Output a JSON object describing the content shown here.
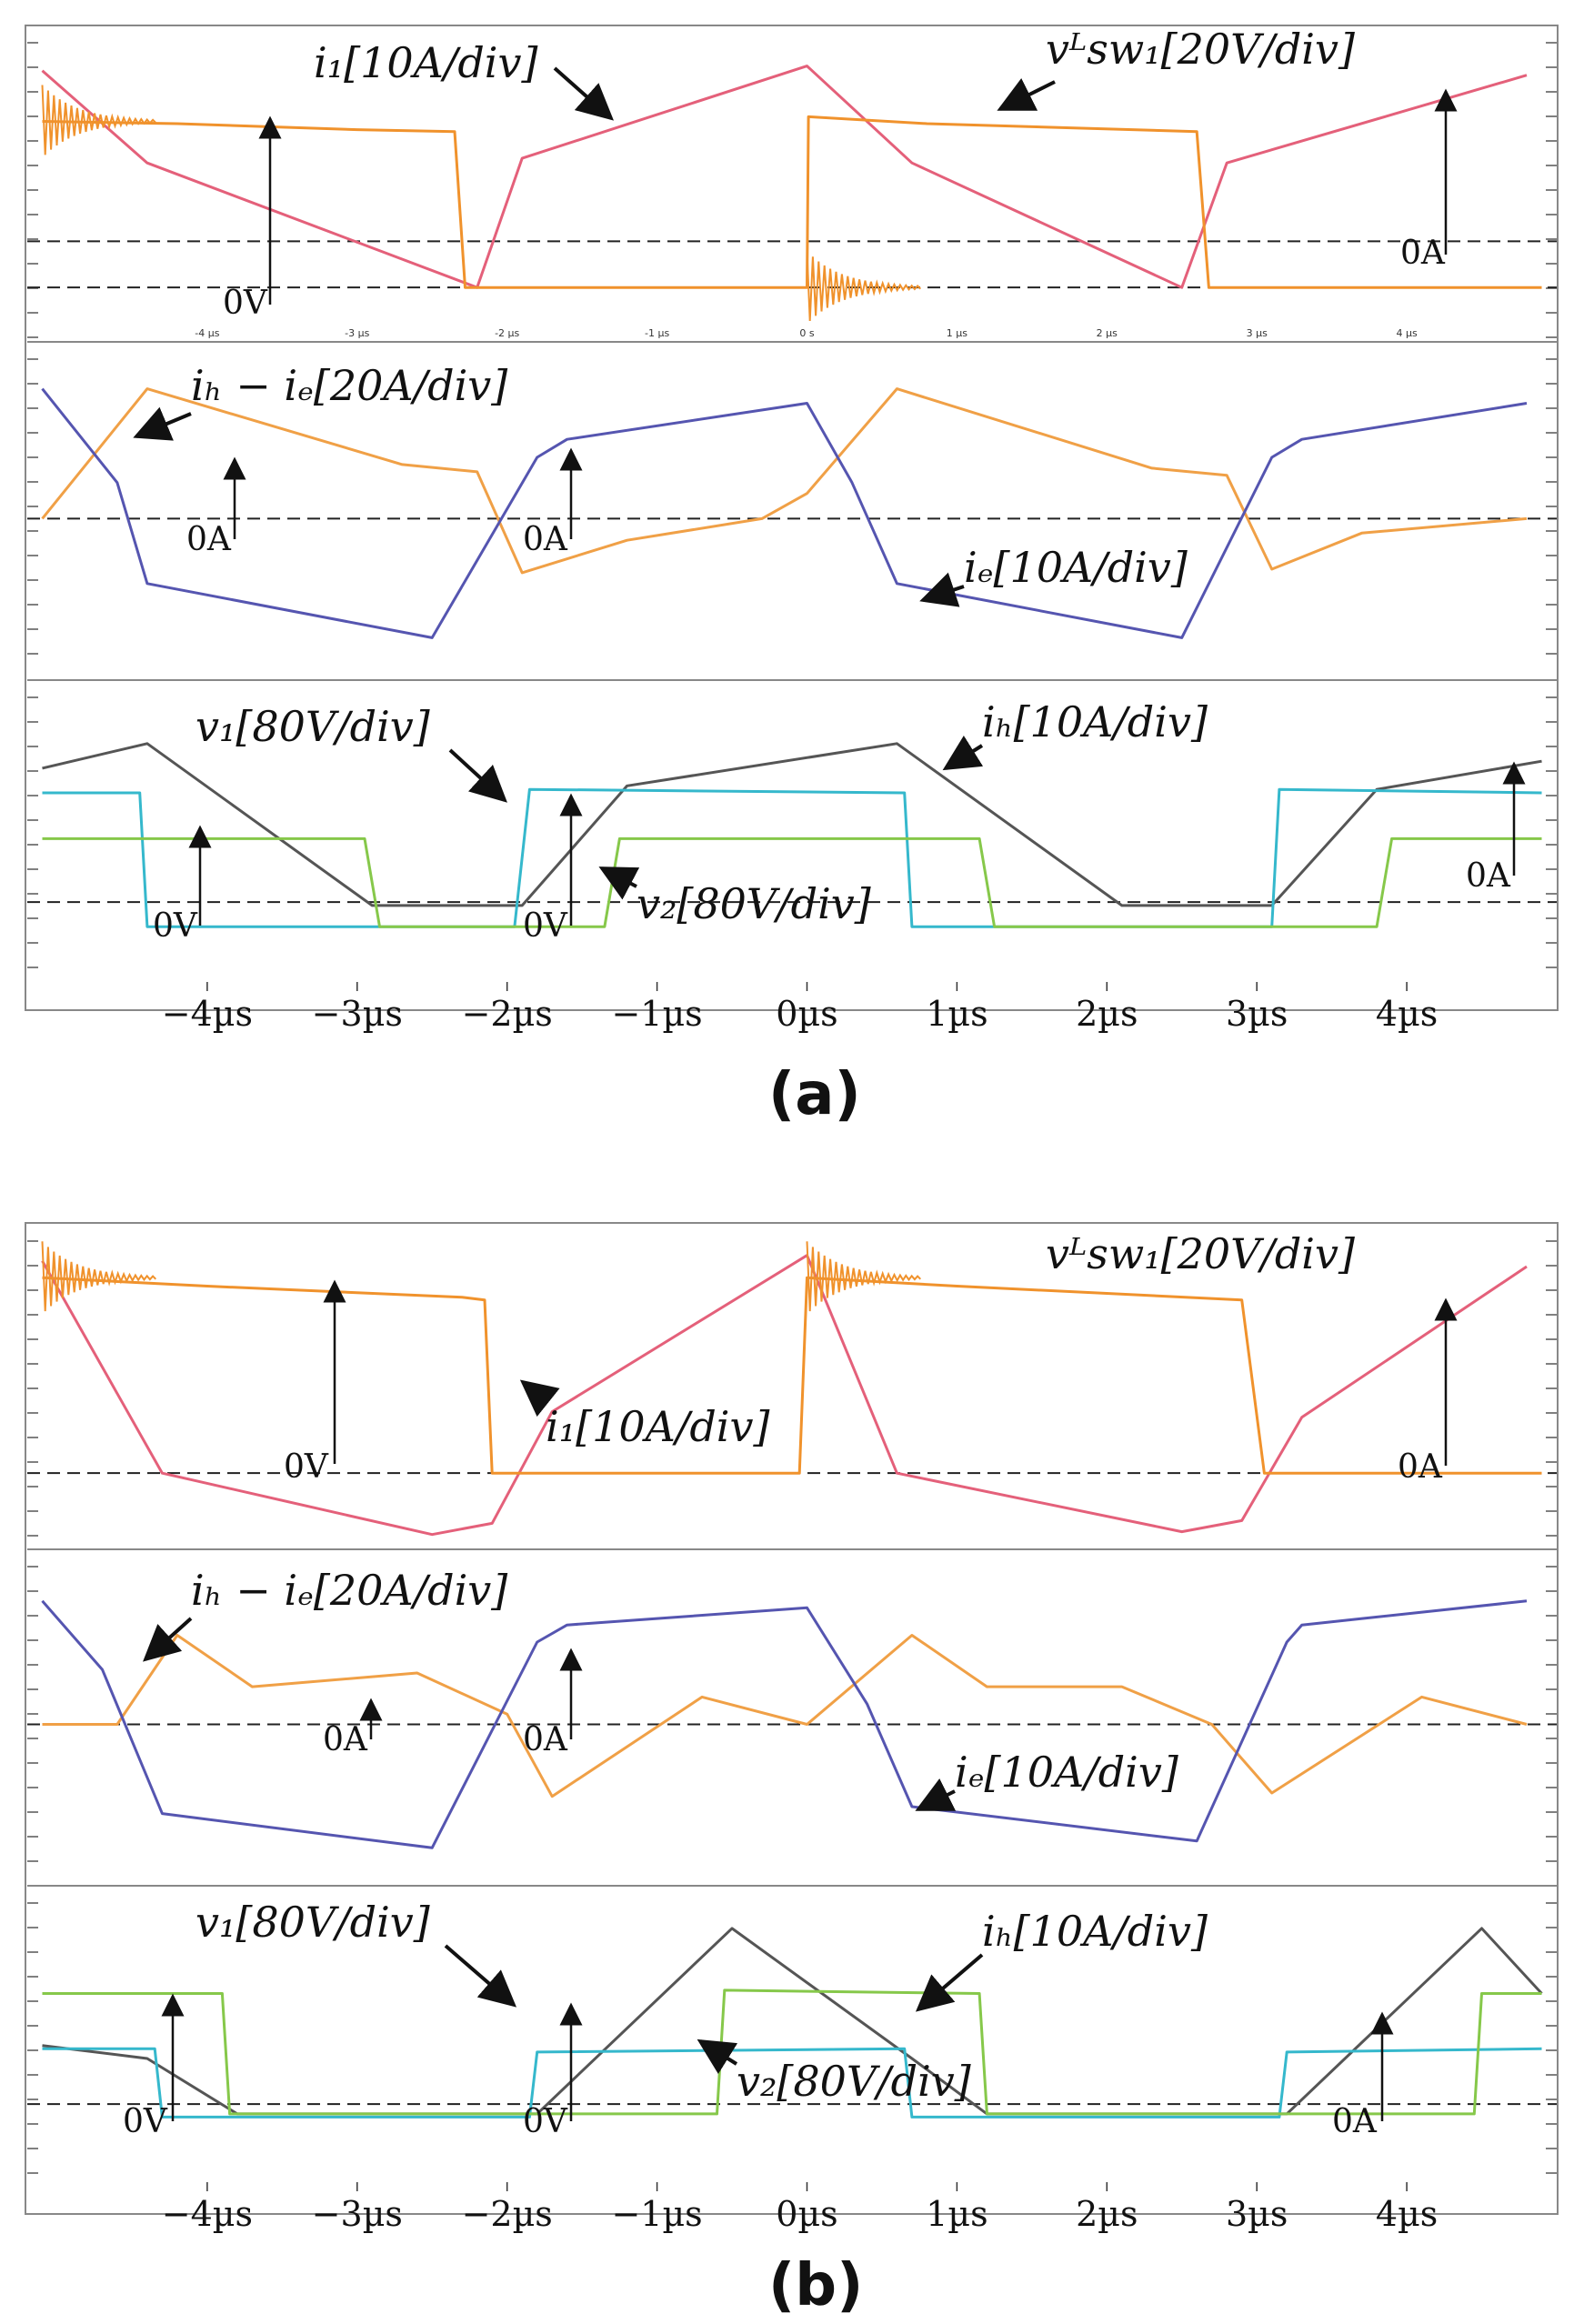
{
  "colors": {
    "i1": "#e4607a",
    "vsw": "#f0922c",
    "ihie": "#f0a046",
    "ie": "#5555b0",
    "v1": "#35b8cc",
    "v2": "#86c84a",
    "ih": "#555555",
    "grid": "#bbbbbb",
    "arrow": "#111111"
  },
  "chart_data": [
    {
      "type": "line",
      "caption": "(a)",
      "x_unit": "µs",
      "xlim": [
        -5.2,
        5.0
      ],
      "time_ticks": [
        -4,
        -3,
        -2,
        -1,
        0,
        1,
        2,
        3,
        4
      ],
      "tick_labels": [
        "−4µs",
        "−3µs",
        "−2µs",
        "−1µs",
        "0µs",
        "1µs",
        "2µs",
        "3µs",
        "4µs"
      ],
      "scope_small_ticks": [
        "-4 µs",
        "-3 µs",
        "-2 µs",
        "-1 µs",
        "0 s",
        "1 µs",
        "2 µs",
        "3 µs",
        "4 µs"
      ],
      "panels": [
        {
          "name": "top",
          "ylim": [
            -1.1,
            5.6
          ],
          "series": [
            {
              "name": "i1",
              "label": "i1[10A/div]",
              "color_key": "i1",
              "x": [
                -5.1,
                -4.4,
                -2.2,
                -1.9,
                0.0,
                0.7,
                2.5,
                2.8,
                4.8
              ],
              "y": [
                4.7,
                2.7,
                0.0,
                2.8,
                4.8,
                2.7,
                0.0,
                2.7,
                4.6
              ]
            },
            {
              "name": "vsw1",
              "label": "vLsw1[20V/div]",
              "color_key": "vsw",
              "x": [
                -5.1,
                -4.2,
                -3.0,
                -2.35,
                -2.28,
                -2.2,
                0.0,
                0.01,
                0.8,
                2.6,
                2.68,
                2.75,
                4.9
              ],
              "y": [
                3.6,
                3.55,
                3.42,
                3.38,
                0.0,
                0.0,
                0.0,
                3.7,
                3.55,
                3.38,
                0.0,
                0.0,
                0.0
              ],
              "ringing_at": [
                -5.1,
                0.0
              ],
              "zero_level": 0.0
            }
          ],
          "refs": [
            {
              "label": "0V",
              "level": 0.0
            },
            {
              "label": "0A",
              "level": 1.0
            }
          ]
        },
        {
          "name": "middle",
          "ylim": [
            -2.2,
            2.4
          ],
          "series": [
            {
              "name": "ih-ie",
              "label": "ih − ie[20A/div]",
              "color_key": "ihie",
              "x": [
                -5.1,
                -4.4,
                -2.7,
                -2.2,
                -1.9,
                -1.2,
                -0.3,
                0.0,
                0.6,
                2.3,
                2.8,
                3.1,
                3.7,
                4.8
              ],
              "y": [
                0.0,
                1.8,
                0.75,
                0.65,
                -0.75,
                -0.3,
                0.0,
                0.35,
                1.8,
                0.7,
                0.6,
                -0.7,
                -0.2,
                0.0
              ]
            },
            {
              "name": "ie",
              "label": "ie[10A/div]",
              "color_key": "ie",
              "x": [
                -5.1,
                -4.6,
                -4.4,
                -2.5,
                -1.8,
                -1.6,
                0.0,
                0.3,
                0.6,
                2.5,
                3.1,
                3.3,
                4.8
              ],
              "y": [
                1.8,
                0.5,
                -0.9,
                -1.65,
                0.85,
                1.1,
                1.6,
                0.5,
                -0.9,
                -1.65,
                0.85,
                1.1,
                1.6
              ]
            }
          ],
          "refs": [
            {
              "label": "0A",
              "level": 0.0
            },
            {
              "label": "0A",
              "level": 0.0
            }
          ]
        },
        {
          "name": "bottom",
          "ylim": [
            -1.2,
            3.1
          ],
          "series": [
            {
              "name": "ih",
              "label": "ih[10A/div]",
              "color_key": "ih",
              "x": [
                -5.1,
                -4.4,
                -2.9,
                -1.9,
                -1.2,
                0.6,
                2.1,
                3.1,
                3.8,
                4.9
              ],
              "y": [
                1.9,
                2.25,
                -0.05,
                -0.05,
                1.65,
                2.25,
                -0.05,
                -0.05,
                1.6,
                2.0
              ]
            },
            {
              "name": "v1",
              "label": "v1[80V/div]",
              "color_key": "v1",
              "x": [
                -5.1,
                -4.45,
                -4.4,
                -1.95,
                -1.85,
                0.65,
                0.7,
                3.1,
                3.15,
                4.9
              ],
              "y": [
                1.55,
                1.55,
                -0.35,
                -0.35,
                1.6,
                1.55,
                -0.35,
                -0.35,
                1.6,
                1.55
              ]
            },
            {
              "name": "v2",
              "label": "v2[80V/div]",
              "color_key": "v2",
              "x": [
                -5.1,
                -2.95,
                -2.85,
                -1.35,
                -1.25,
                1.15,
                1.25,
                3.8,
                3.9,
                4.9
              ],
              "y": [
                0.9,
                0.9,
                -0.35,
                -0.35,
                0.9,
                0.9,
                -0.35,
                -0.35,
                0.9,
                0.9
              ]
            }
          ],
          "refs": [
            {
              "label": "0V",
              "level": 0.0
            },
            {
              "label": "0V",
              "level": 0.0
            },
            {
              "label": "0A",
              "level": 0.0
            }
          ]
        }
      ]
    },
    {
      "type": "line",
      "caption": "(b)",
      "x_unit": "µs",
      "xlim": [
        -5.2,
        5.0
      ],
      "time_ticks": [
        -4,
        -3,
        -2,
        -1,
        0,
        1,
        2,
        3,
        4
      ],
      "tick_labels": [
        "−4µs",
        "−3µs",
        "−2µs",
        "−1µs",
        "0µs",
        "1µs",
        "2µs",
        "3µs",
        "4µs"
      ],
      "panels": [
        {
          "name": "top",
          "ylim": [
            -1.3,
            4.4
          ],
          "series": [
            {
              "name": "i1",
              "label": "i1[10A/div]",
              "color_key": "i1",
              "x": [
                -5.1,
                -4.3,
                -2.5,
                -2.1,
                -1.7,
                0.0,
                0.6,
                2.5,
                2.9,
                3.3,
                4.8
              ],
              "y": [
                3.8,
                0.0,
                -1.1,
                -0.9,
                1.1,
                3.9,
                0.0,
                -1.05,
                -0.85,
                1.0,
                3.7
              ]
            },
            {
              "name": "vsw1",
              "label": "vLsw1[20V/div]",
              "color_key": "vsw",
              "x": [
                -5.1,
                -4.0,
                -2.3,
                -2.15,
                -2.1,
                -1.5,
                -0.05,
                0.0,
                1.0,
                2.9,
                3.05,
                3.1,
                4.9
              ],
              "y": [
                3.5,
                3.35,
                3.15,
                3.1,
                0.0,
                0.0,
                0.0,
                3.5,
                3.35,
                3.1,
                0.0,
                0.0,
                0.0
              ],
              "ringing_at": [
                -5.1,
                0.0
              ],
              "zero_level": 0.0
            }
          ],
          "refs": [
            {
              "label": "0V",
              "level": 0.0
            },
            {
              "label": "0A",
              "level": 0.0
            }
          ]
        },
        {
          "name": "middle",
          "ylim": [
            -2.3,
            2.5
          ],
          "series": [
            {
              "name": "ih-ie",
              "label": "ih − ie[20A/div]",
              "color_key": "ihie",
              "x": [
                -5.1,
                -4.6,
                -4.2,
                -3.7,
                -2.6,
                -2.0,
                -1.7,
                -0.7,
                0.0,
                0.7,
                1.2,
                2.1,
                2.7,
                3.1,
                4.1,
                4.8
              ],
              "y": [
                0.0,
                0.0,
                1.3,
                0.55,
                0.75,
                0.15,
                -1.05,
                0.4,
                0.0,
                1.3,
                0.55,
                0.55,
                0.0,
                -1.0,
                0.4,
                0.0
              ]
            },
            {
              "name": "ie",
              "label": "ie[10A/div]",
              "color_key": "ie",
              "x": [
                -5.1,
                -4.7,
                -4.3,
                -2.5,
                -1.8,
                -1.6,
                0.0,
                0.4,
                0.7,
                2.6,
                3.2,
                3.3,
                4.8
              ],
              "y": [
                1.8,
                0.8,
                -1.3,
                -1.8,
                1.2,
                1.45,
                1.7,
                0.3,
                -1.2,
                -1.7,
                1.2,
                1.45,
                1.8
              ]
            }
          ],
          "refs": [
            {
              "label": "0A",
              "level": 0.0
            },
            {
              "label": "0A",
              "level": 0.0
            }
          ]
        },
        {
          "name": "bottom",
          "ylim": [
            -1.2,
            3.3
          ],
          "series": [
            {
              "name": "ih",
              "label": "ih[10A/div]",
              "color_key": "ih",
              "x": [
                -5.1,
                -4.4,
                -3.8,
                -1.8,
                -0.5,
                0.7,
                1.2,
                3.2,
                4.5,
                4.9
              ],
              "y": [
                0.9,
                0.7,
                -0.15,
                -0.15,
                2.7,
                0.7,
                -0.15,
                -0.15,
                2.7,
                1.7
              ]
            },
            {
              "name": "v1",
              "label": "v1[80V/div]",
              "color_key": "v1",
              "x": [
                -5.1,
                -4.35,
                -4.3,
                -1.85,
                -1.8,
                0.65,
                0.7,
                3.15,
                3.2,
                4.9
              ],
              "y": [
                0.85,
                0.85,
                -0.2,
                -0.2,
                0.8,
                0.85,
                -0.2,
                -0.2,
                0.8,
                0.85
              ]
            },
            {
              "name": "v2",
              "label": "v2[80V/div]",
              "color_key": "v2",
              "x": [
                -5.1,
                -3.9,
                -3.85,
                -0.6,
                -0.55,
                1.15,
                1.2,
                4.45,
                4.5,
                4.9
              ],
              "y": [
                1.7,
                1.7,
                -0.15,
                -0.15,
                1.75,
                1.7,
                -0.15,
                -0.15,
                1.7,
                1.7
              ]
            }
          ],
          "refs": [
            {
              "label": "0V",
              "level": 0.0
            },
            {
              "label": "0V",
              "level": 0.0
            },
            {
              "label": "0A",
              "level": 0.0
            }
          ]
        }
      ]
    }
  ],
  "annotations": {
    "a": {
      "i1": "i₁[10A/div]",
      "vsw": "vᴸsw₁[20V/div]",
      "ihie": "iₕ − iₑ[20A/div]",
      "ie": "iₑ[10A/div]",
      "v1": "v₁[80V/div]",
      "ih": "iₕ[10A/div]",
      "v2": "v₂[80V/div]",
      "zero_top_v": "0V",
      "zero_top_a": "0A",
      "zero_mid_1": "0A",
      "zero_mid_2": "0A",
      "zero_bot_v1": "0V",
      "zero_bot_v2": "0V",
      "zero_bot_a": "0A"
    },
    "b": {
      "i1": "i₁[10A/div]",
      "vsw": "vᴸsw₁[20V/div]",
      "ihie": "iₕ − iₑ[20A/div]",
      "ie": "iₑ[10A/div]",
      "v1": "v₁[80V/div]",
      "ih": "iₕ[10A/div]",
      "v2": "v₂[80V/div]",
      "zero_top_v": "0V",
      "zero_top_a": "0A",
      "zero_mid_1": "0A",
      "zero_mid_2": "0A",
      "zero_bot_v1": "0V",
      "zero_bot_v2": "0V",
      "zero_bot_a": "0A"
    }
  }
}
